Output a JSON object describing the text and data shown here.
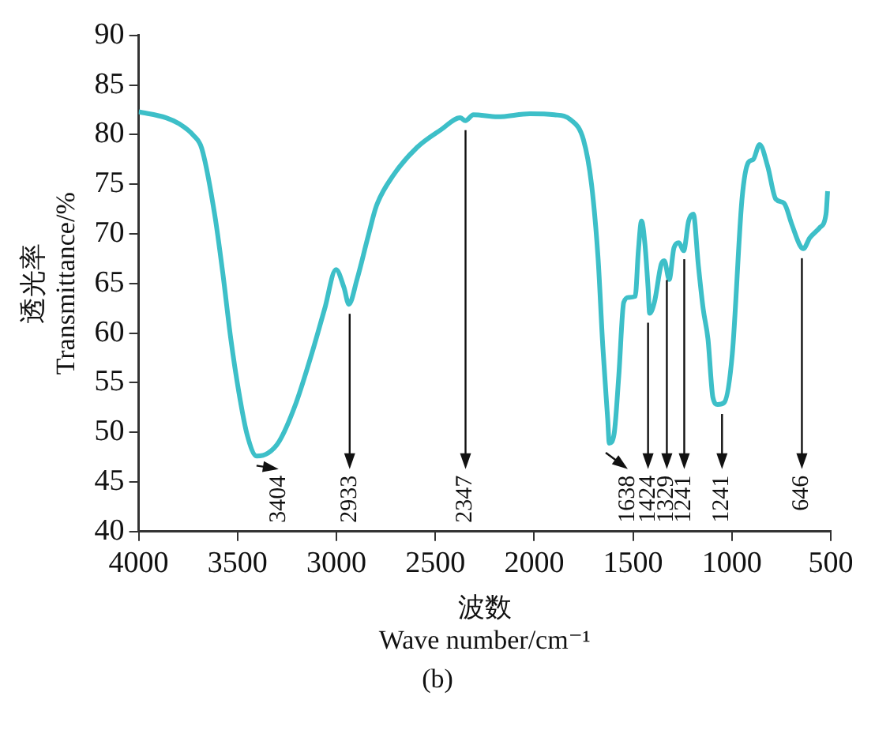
{
  "chart_data": {
    "type": "line",
    "xlabel": "波数\nWave number/cm⁻¹",
    "ylabel": "透光率\nTransmittance/%",
    "xlim": [
      4000,
      500
    ],
    "xticks": [
      4000,
      3500,
      3000,
      2500,
      2000,
      1500,
      1000,
      500
    ],
    "ylim": [
      40,
      90
    ],
    "yticks": [
      40,
      45,
      50,
      55,
      60,
      65,
      70,
      75,
      80,
      85,
      90
    ],
    "grid": false,
    "legend": false,
    "marker": "none",
    "line_style": "solid",
    "series": [
      {
        "color": "#3dbfc8",
        "x": [
          4000,
          3861,
          3796,
          3722,
          3681,
          3616,
          3575,
          3534,
          3493,
          3452,
          3403,
          3346,
          3289,
          3207,
          3125,
          3060,
          3002,
          2962,
          2937,
          2896,
          2839,
          2798,
          2716,
          2593,
          2471,
          2373,
          2348,
          2307,
          2185,
          2021,
          1898,
          1816,
          1751,
          1710,
          1677,
          1653,
          1628,
          1620,
          1596,
          1572,
          1547,
          1522,
          1489,
          1473,
          1457,
          1440,
          1424,
          1416,
          1391,
          1358,
          1342,
          1317,
          1293,
          1268,
          1244,
          1219,
          1195,
          1170,
          1145,
          1121,
          1096,
          1072,
          1039,
          998,
          949,
          917,
          892,
          860,
          819,
          778,
          737,
          696,
          655,
          639,
          606,
          557,
          524,
          516
        ],
        "values": [
          82.3,
          81.7,
          81.1,
          79.9,
          78.6,
          72.0,
          66.1,
          59.4,
          54.0,
          49.8,
          47.6,
          47.9,
          49.1,
          52.8,
          57.9,
          62.4,
          66.4,
          64.6,
          62.9,
          65.4,
          69.8,
          72.8,
          75.8,
          78.7,
          80.5,
          81.7,
          81.4,
          82.0,
          81.8,
          82.1,
          82.0,
          81.5,
          79.5,
          75.0,
          67.6,
          58.7,
          51.3,
          48.9,
          49.8,
          55.7,
          63.1,
          63.6,
          63.7,
          68.3,
          71.3,
          69.0,
          64.6,
          62.0,
          63.2,
          66.9,
          67.3,
          65.4,
          68.6,
          69.1,
          68.3,
          71.3,
          72.0,
          66.9,
          62.4,
          59.4,
          53.5,
          52.8,
          53.0,
          57.9,
          73.5,
          77.2,
          77.5,
          79.0,
          76.8,
          73.5,
          73.1,
          70.9,
          68.8,
          68.5,
          69.6,
          70.6,
          72.0,
          74.3
        ]
      }
    ],
    "annotations": [
      {
        "text": "3404",
        "x": 3404,
        "y": 47.6
      },
      {
        "text": "2933",
        "x": 2933,
        "y": 62.9
      },
      {
        "text": "2347",
        "x": 2347,
        "y": 81.4
      },
      {
        "text": "1638",
        "x": 1638,
        "y": 48.9
      },
      {
        "text": "1424",
        "x": 1424,
        "y": 62.0
      },
      {
        "text": "1329",
        "x": 1329,
        "y": 66.3
      },
      {
        "text": "1241",
        "x": 1241,
        "y": 68.4
      },
      {
        "text": "1241",
        "x": 1050,
        "y": 52.8
      },
      {
        "text": "646",
        "x": 646,
        "y": 68.5
      },
      "(b)"
    ]
  }
}
